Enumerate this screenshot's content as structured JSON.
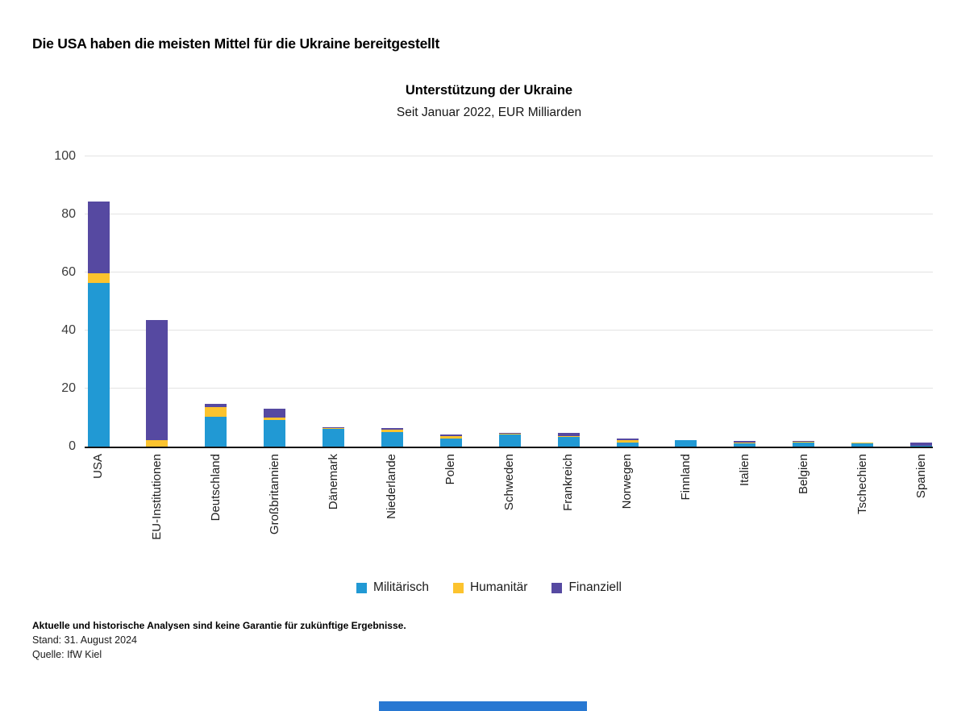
{
  "page": {
    "headline": "Die USA haben die meisten Mittel für die Ukraine bereitgestellt",
    "footnote_bold": "Aktuelle und historische Analysen sind keine Garantie für zukünftige Ergebnisse.",
    "footnote_date": "Stand: 31. August 2024",
    "footnote_source": "Quelle: IfW Kiel"
  },
  "colors": {
    "military": "#2199D4",
    "humanitarian": "#FCC32E",
    "financial": "#5649A1",
    "gridline": "#E3E3E3",
    "axis": "#141414",
    "footer_bar": "#2878D2"
  },
  "chart_data": {
    "type": "bar",
    "stacked": true,
    "title": "Unterstützung der Ukraine",
    "subtitle": "Seit Januar 2022, EUR Milliarden",
    "ylabel": "",
    "xlabel": "",
    "ylim": [
      0,
      100
    ],
    "yticks": [
      0,
      20,
      40,
      60,
      80,
      100
    ],
    "grid": true,
    "legend_position": "bottom",
    "categories": [
      "USA",
      "EU-Institutionen",
      "Deutschland",
      "Großbritannien",
      "Dänemark",
      "Niederlande",
      "Polen",
      "Schweden",
      "Frankreich",
      "Norwegen",
      "Finnland",
      "Italien",
      "Belgien",
      "Tschechien",
      "Spanien"
    ],
    "series": [
      {
        "name": "Militärisch",
        "color": "#2199D4",
        "values": [
          56.3,
          0.0,
          10.3,
          9.1,
          6.0,
          5.0,
          2.9,
          4.2,
          3.2,
          1.5,
          2.1,
          1.1,
          1.4,
          1.2,
          0.3
        ]
      },
      {
        "name": "Humanitär",
        "color": "#FCC32E",
        "values": [
          3.3,
          2.3,
          3.2,
          0.9,
          0.5,
          0.7,
          0.6,
          0.3,
          0.5,
          0.6,
          0.1,
          0.4,
          0.3,
          0.1,
          0.1
        ]
      },
      {
        "name": "Finanziell",
        "color": "#5649A1",
        "values": [
          24.7,
          41.2,
          1.3,
          3.1,
          0.2,
          0.8,
          0.7,
          0.3,
          0.9,
          0.6,
          0.0,
          0.5,
          0.3,
          0.0,
          0.9
        ]
      }
    ]
  }
}
